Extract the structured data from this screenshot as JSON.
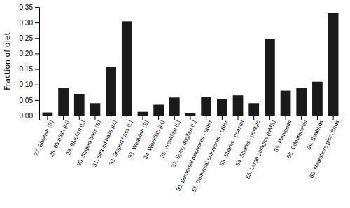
{
  "chart_data": {
    "type": "bar",
    "categories": [
      "27. Bluefish (S)",
      "28. Bluefish (M)",
      "29. Bluefish (L)",
      "30. Striped bass (S)",
      "31. Striped bass (M)",
      "32. Striped bass (L)",
      "33. Weakfish (S)",
      "34. Weakfish (M)",
      "35. Weakfish (L)",
      "37. Spiny dogfish (L)",
      "50. Demersal piscivores - other",
      "51. Demersal omnivores - other",
      "53. Sharks - coastal",
      "54. Sharks - pelagic",
      "55. Large pelagics (HMS)",
      "56. Pinnipeds",
      "58. Odontocetes",
      "59. Seabirds",
      "60. Nearshore pisc. Birds"
    ],
    "values": [
      0.01,
      0.09,
      0.07,
      0.04,
      0.156,
      0.304,
      0.012,
      0.035,
      0.058,
      0.008,
      0.06,
      0.052,
      0.065,
      0.04,
      0.247,
      0.08,
      0.088,
      0.109,
      0.33
    ],
    "color": "#1a1a1a",
    "ylabel": "Fraction of diet",
    "ylim": [
      0,
      0.35
    ],
    "yticks": [
      {
        "value": 0,
        "label": "0.00"
      },
      0.05,
      {
        "value": 0.1,
        "label": "0.10"
      },
      0.15,
      {
        "value": 0.2,
        "label": "0.20"
      },
      0.25,
      {
        "value": 0.3,
        "label": "0.30"
      },
      0.35
    ]
  }
}
